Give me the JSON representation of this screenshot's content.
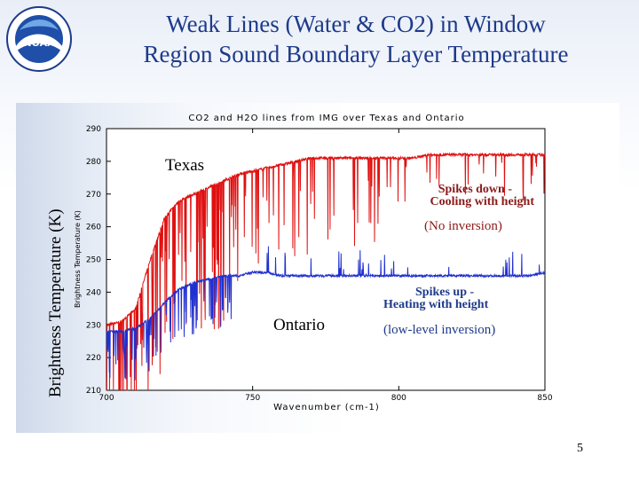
{
  "slide": {
    "title_line1": "Weak Lines (Water & CO2) in Window",
    "title_line2": "Region Sound Boundary Layer Temperature",
    "page_number": "5"
  },
  "logo": {
    "icon": "noaa-logo-icon",
    "text": "NOAA"
  },
  "annotations": {
    "texas": "Texas",
    "ontario": "Ontario",
    "spikes_down_1": "Spikes down -",
    "spikes_down_2": "Cooling with height",
    "no_inversion": "(No inversion)",
    "spikes_up_1": "Spikes up -",
    "spikes_up_2": "Heating with height",
    "low_inversion": "(low-level inversion)"
  },
  "chart_data": {
    "type": "line",
    "title": "CO2 and H2O lines from IMG over Texas and Ontario",
    "xlabel": "Wavenumber (cm-1)",
    "ylabel": "Brightness Temperature (K)",
    "outer_ylabel": "Brightness Temperature (K)",
    "xlim": [
      700,
      850
    ],
    "ylim": [
      210,
      290
    ],
    "xticks": [
      700,
      750,
      800,
      850
    ],
    "yticks": [
      210,
      220,
      230,
      240,
      250,
      260,
      270,
      280,
      290
    ],
    "grid": false,
    "series": [
      {
        "name": "Texas",
        "color": "#e01010",
        "x": [
          700,
          705,
          710,
          715,
          720,
          725,
          730,
          735,
          740,
          745,
          750,
          755,
          760,
          765,
          770,
          775,
          780,
          785,
          790,
          795,
          800,
          805,
          810,
          815,
          820,
          825,
          830,
          835,
          840,
          845,
          850
        ],
        "y": [
          230,
          231,
          235,
          250,
          263,
          268,
          270,
          272,
          274,
          276,
          277,
          278,
          279,
          280,
          281,
          281,
          281,
          281,
          281,
          281,
          281,
          281,
          282,
          282,
          282,
          282,
          282,
          282,
          282,
          282,
          282
        ]
      },
      {
        "name": "Ontario",
        "color": "#2030d0",
        "x": [
          700,
          705,
          710,
          715,
          720,
          725,
          730,
          735,
          740,
          745,
          750,
          755,
          760,
          765,
          770,
          775,
          780,
          785,
          790,
          795,
          800,
          805,
          810,
          815,
          820,
          825,
          830,
          835,
          840,
          845,
          850
        ],
        "y": [
          228,
          228,
          229,
          232,
          237,
          241,
          243,
          244,
          245,
          245,
          246,
          246,
          245,
          245,
          245,
          245,
          245,
          245,
          245,
          245,
          245,
          245,
          245,
          245,
          245,
          245,
          245,
          245,
          245,
          245,
          246
        ]
      }
    ]
  }
}
